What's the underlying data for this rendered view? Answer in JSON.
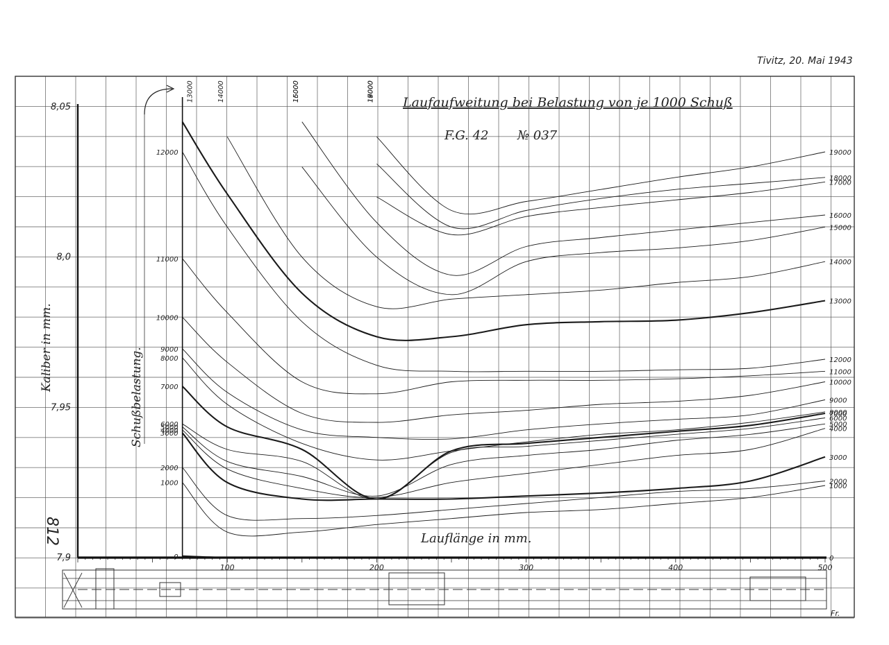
{
  "header": {
    "place_date": "Tivitz, 20. Mai 1943"
  },
  "side_number": "812",
  "corner_mark": "Fr.",
  "chart_data": {
    "type": "line",
    "title": "Laufaufweitung bei Belastung von je 1000 Schuß",
    "subtitle_left": "F.G. 42",
    "subtitle_right": "№ 037",
    "xlabel": "Lauflänge in mm.",
    "ylabel": "Kaliber in mm.",
    "ylabel_inner": "Schußbelastung.",
    "xlim": [
      0,
      500
    ],
    "ylim": [
      7.9,
      8.05
    ],
    "grid": true,
    "x_ticks": [
      "100",
      "200",
      "300",
      "400",
      "500"
    ],
    "y_ticks": [
      "7,9",
      "7,95",
      "8,0",
      "8,05"
    ],
    "left_scale_labels": [
      "12000",
      "11000",
      "10000",
      "9000",
      "8000",
      "7000",
      "6000",
      "5000",
      "4000",
      "3000",
      "2000",
      "1000",
      "0"
    ],
    "top_labels": [
      "13000",
      "14000",
      "15000",
      "16000",
      "17000",
      "18000",
      "19000"
    ],
    "right_labels": [
      "19000",
      "18000",
      "17000",
      "16000",
      "15000",
      "14000",
      "13000",
      "12000",
      "11000",
      "10000",
      "9000",
      "8000",
      "7000",
      "6000",
      "5000",
      "4000",
      "3000",
      "2000",
      "1000",
      "0"
    ],
    "x": [
      70,
      100,
      150,
      200,
      250,
      300,
      350,
      400,
      450,
      500
    ],
    "series": [
      {
        "name": "0",
        "values": [
          7.9005,
          7.9,
          7.9,
          7.9,
          7.9,
          7.9,
          7.9,
          7.9,
          7.9,
          7.9
        ],
        "bold": true
      },
      {
        "name": "1000",
        "values": [
          7.925,
          7.9085,
          7.9085,
          7.911,
          7.913,
          7.915,
          7.916,
          7.918,
          7.92,
          7.924
        ],
        "bold": false
      },
      {
        "name": "2000",
        "values": [
          7.93,
          7.914,
          7.913,
          7.914,
          7.916,
          7.918,
          7.92,
          7.922,
          7.923,
          7.9255
        ],
        "bold": false
      },
      {
        "name": "3000",
        "values": [
          7.9415,
          7.925,
          7.9195,
          7.9195,
          7.9195,
          7.9205,
          7.9215,
          7.923,
          7.9255,
          7.9335
        ],
        "bold": true
      },
      {
        "name": "4000",
        "values": [
          7.9425,
          7.9295,
          7.923,
          7.92,
          7.925,
          7.928,
          7.931,
          7.934,
          7.936,
          7.943
        ],
        "bold": false
      },
      {
        "name": "5000",
        "values": [
          7.9435,
          7.932,
          7.927,
          7.9205,
          7.931,
          7.934,
          7.936,
          7.939,
          7.941,
          7.9445
        ],
        "bold": false
      },
      {
        "name": "6000",
        "values": [
          7.9445,
          7.936,
          7.932,
          7.9195,
          7.935,
          7.937,
          7.939,
          7.941,
          7.943,
          7.9465
        ],
        "bold": false
      },
      {
        "name": "7000",
        "values": [
          7.957,
          7.9435,
          7.936,
          7.9195,
          7.9355,
          7.938,
          7.94,
          7.942,
          7.944,
          7.948
        ],
        "bold": true
      },
      {
        "name": "8000",
        "values": [
          7.9665,
          7.951,
          7.938,
          7.9325,
          7.9355,
          7.9385,
          7.941,
          7.9425,
          7.945,
          7.9485
        ],
        "bold": false
      },
      {
        "name": "9000",
        "values": [
          7.9695,
          7.955,
          7.9425,
          7.94,
          7.9395,
          7.9425,
          7.9445,
          7.946,
          7.9475,
          7.9525
        ],
        "bold": false
      },
      {
        "name": "10000",
        "values": [
          7.98,
          7.965,
          7.948,
          7.945,
          7.9475,
          7.949,
          7.951,
          7.952,
          7.954,
          7.9585
        ],
        "bold": false
      },
      {
        "name": "11000",
        "values": [
          7.9995,
          7.9815,
          7.9585,
          7.9545,
          7.9585,
          7.959,
          7.959,
          7.9595,
          7.9605,
          7.962
        ],
        "bold": false
      },
      {
        "name": "12000",
        "values": [
          8.035,
          8.01,
          7.9785,
          7.964,
          7.962,
          7.962,
          7.962,
          7.9625,
          7.963,
          7.966
        ],
        "bold": false
      },
      {
        "name": "13000",
        "values": [
          8.045,
          8.021,
          7.988,
          7.9735,
          7.9735,
          7.9775,
          7.9785,
          7.979,
          7.9815,
          7.9855
        ],
        "bold": true
      },
      {
        "name": "14000",
        "values": [
          null,
          8.04,
          8.0,
          7.9835,
          7.986,
          7.9875,
          7.989,
          7.9915,
          7.9935,
          7.9985
        ],
        "bold": false
      },
      {
        "name": "15000",
        "values": [
          null,
          null,
          8.03,
          8.0,
          7.9875,
          7.9985,
          8.0015,
          8.003,
          8.0055,
          8.01
        ],
        "bold": false
      },
      {
        "name": "16000",
        "values": [
          null,
          null,
          8.045,
          8.0115,
          7.994,
          8.0035,
          8.0065,
          8.009,
          8.0115,
          8.014
        ],
        "bold": false
      },
      {
        "name": "17000",
        "values": [
          null,
          null,
          null,
          8.02,
          8.0075,
          8.0135,
          8.0165,
          8.019,
          8.0215,
          8.025
        ],
        "bold": false
      },
      {
        "name": "18000",
        "values": [
          null,
          null,
          null,
          8.031,
          8.01,
          8.0155,
          8.0195,
          8.0225,
          8.0245,
          8.0265
        ],
        "bold": false
      },
      {
        "name": "19000",
        "values": [
          null,
          null,
          null,
          8.04,
          8.0155,
          8.0185,
          8.0225,
          8.0265,
          8.03,
          8.035
        ],
        "bold": false
      }
    ]
  }
}
